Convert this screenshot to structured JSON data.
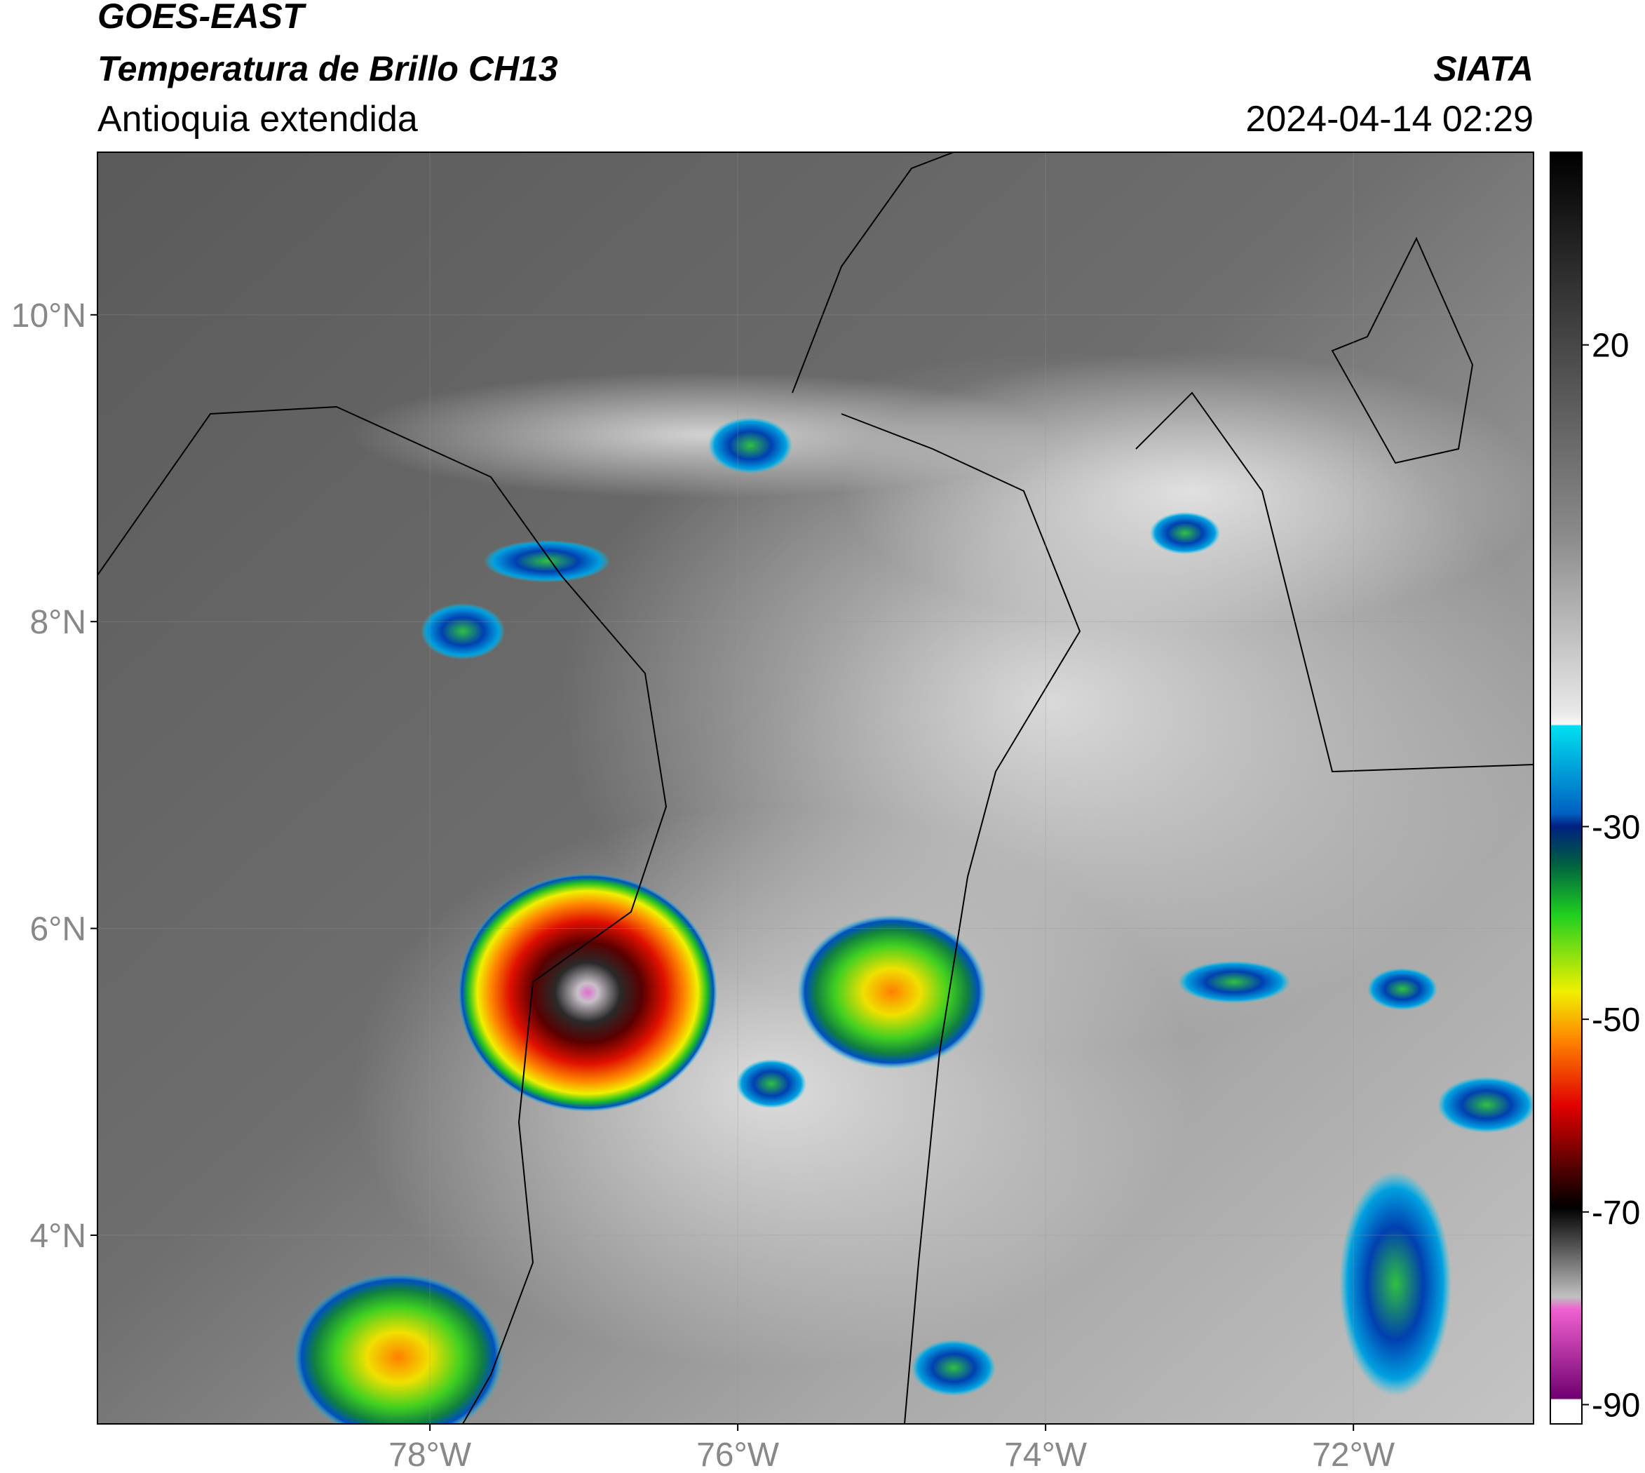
{
  "header": {
    "title": "GOES-EAST",
    "subtitle": "Temperatura de Brillo CH13",
    "region": "Antioquia extendida",
    "source": "SIATA",
    "datetime": "2024-04-14 02:29"
  },
  "map": {
    "xlim": [
      -80.16,
      -70.83
    ],
    "ylim": [
      2.77,
      11.06
    ],
    "xticks": [
      {
        "value": -78,
        "label": "78°W"
      },
      {
        "value": -76,
        "label": "76°W"
      },
      {
        "value": -74,
        "label": "74°W"
      },
      {
        "value": -72,
        "label": "72°W"
      }
    ],
    "yticks": [
      {
        "value": 4,
        "label": "4°N"
      },
      {
        "value": 6,
        "label": "6°N"
      },
      {
        "value": 8,
        "label": "8°N"
      },
      {
        "value": 10,
        "label": "10°N"
      }
    ],
    "grid": true
  },
  "colorbar": {
    "lim": [
      -92,
      40
    ],
    "ticks": [
      20,
      -30,
      -50,
      -70,
      -90
    ]
  }
}
